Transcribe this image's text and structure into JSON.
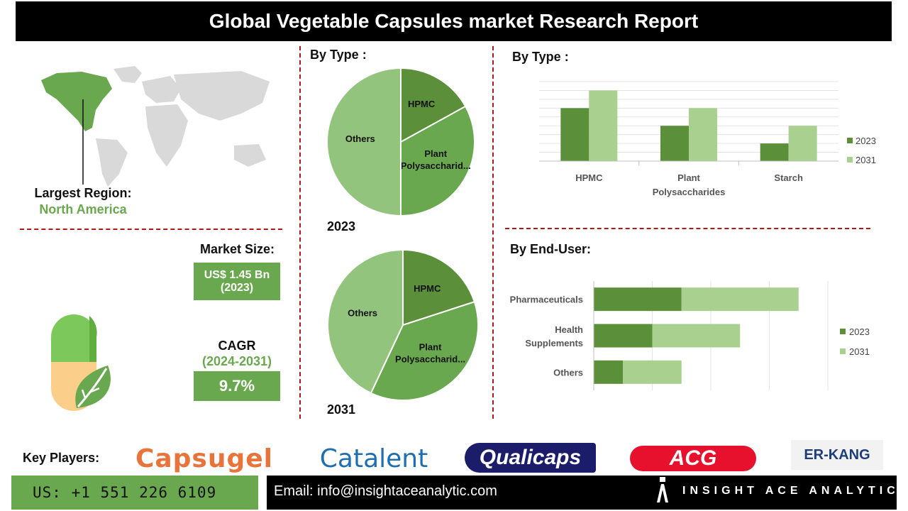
{
  "title": "Global Vegetable Capsules market Research Report",
  "region": {
    "label": "Largest Region:",
    "value": "North America"
  },
  "market": {
    "label": "Market Size:",
    "value_line1": "US$ 1.45 Bn",
    "value_line2": "(2023)"
  },
  "cagr": {
    "label": "CAGR",
    "period": "(2024-2031)",
    "value": "9.7%"
  },
  "sections": {
    "pie_header": "By Type :",
    "bar_type_header": "By  Type :",
    "enduser_header": "By End-User:"
  },
  "colors": {
    "dark_green": "#5b8f3a",
    "mid_green": "#6aa84f",
    "light_green": "#93c47d",
    "pale_green": "#a9d08e",
    "dash_red": "#b01818"
  },
  "chart_data": [
    {
      "type": "pie",
      "year_label": "2023",
      "slices": [
        {
          "label": "HPMC",
          "value": 17,
          "color": "#5b8f3a"
        },
        {
          "label": "Plant Polysaccharid...",
          "value": 33,
          "color": "#6aa84f"
        },
        {
          "label": "Others",
          "value": 50,
          "color": "#93c47d"
        }
      ]
    },
    {
      "type": "pie",
      "year_label": "2031",
      "slices": [
        {
          "label": "HPMC",
          "value": 20,
          "color": "#5b8f3a"
        },
        {
          "label": "Plant Polysaccharid...",
          "value": 37,
          "color": "#6aa84f"
        },
        {
          "label": "Others",
          "value": 43,
          "color": "#93c47d"
        }
      ]
    },
    {
      "type": "bar",
      "categories": [
        "HPMC",
        "Plant Polysaccharides",
        "Starch"
      ],
      "series": [
        {
          "name": "2023",
          "values": [
            3.0,
            2.0,
            1.0
          ],
          "color": "#5b8f3a"
        },
        {
          "name": "2031",
          "values": [
            4.0,
            3.0,
            2.0
          ],
          "color": "#a9d08e"
        }
      ],
      "ylim": [
        0,
        4.5
      ],
      "grid": true,
      "legend": "right"
    },
    {
      "type": "bar",
      "orientation": "horizontal-stacked",
      "categories": [
        "Pharmaceuticals",
        "Health Supplements",
        "Others"
      ],
      "series": [
        {
          "name": "2023",
          "values": [
            1.5,
            1.0,
            0.5
          ],
          "color": "#5b8f3a"
        },
        {
          "name": "2031",
          "values": [
            2.0,
            1.5,
            1.0
          ],
          "color": "#a9d08e"
        }
      ],
      "xlim": [
        0,
        4
      ],
      "grid": true,
      "legend": "right"
    }
  ],
  "key_players": {
    "label": "Key Players:",
    "logos": [
      "Capsugel",
      "Catalent",
      "Qualicaps",
      "ACG",
      "ER-KANG"
    ]
  },
  "footer": {
    "phone": "US: +1 551 226 6109",
    "email": "Email: info@insightaceanalytic.com",
    "brand": "INSIGHT ACE ANALYTIC"
  }
}
